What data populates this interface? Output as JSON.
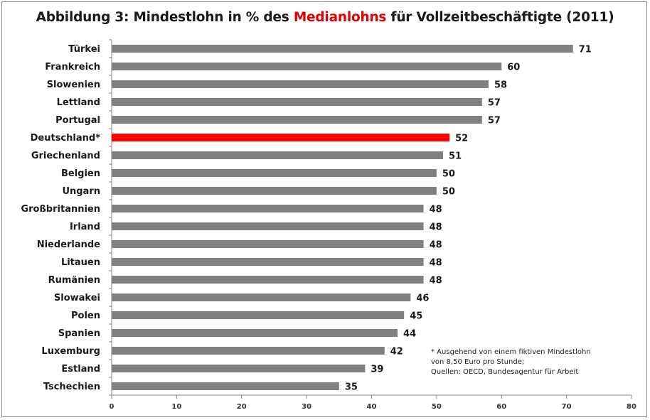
{
  "chart_data": {
    "type": "bar",
    "orientation": "horizontal",
    "title_parts": {
      "prefix": "Abbildung 3: Mindestlohn in % des ",
      "highlight": "Medianlohns",
      "suffix": " für Vollzeitbeschäftigte (2011)"
    },
    "categories": [
      "Türkei",
      "Frankreich",
      "Slowenien",
      "Lettland",
      "Portugal",
      "Deutschland*",
      "Griechenland",
      "Belgien",
      "Ungarn",
      "Großbritannien",
      "Irland",
      "Niederlande",
      "Litauen",
      "Rumänien",
      "Slowakei",
      "Polen",
      "Spanien",
      "Luxemburg",
      "Estland",
      "Tschechien"
    ],
    "values": [
      71,
      60,
      58,
      57,
      57,
      52,
      51,
      50,
      50,
      48,
      48,
      48,
      48,
      48,
      46,
      45,
      44,
      42,
      39,
      35
    ],
    "highlight_category": "Deutschland*",
    "xlim": [
      0,
      80
    ],
    "xticks": [
      0,
      10,
      20,
      30,
      40,
      50,
      60,
      70,
      80
    ],
    "grid": false,
    "colors": {
      "bar": "#808080",
      "highlight_bar": "#ff0000",
      "title_highlight": "#e00000"
    },
    "footnote": [
      "* Ausgehend von einem fiktiven Mindestlohn",
      "von 8,50 Euro pro Stunde;",
      "Quellen: OECD, Bundesagentur für Arbeit"
    ]
  }
}
